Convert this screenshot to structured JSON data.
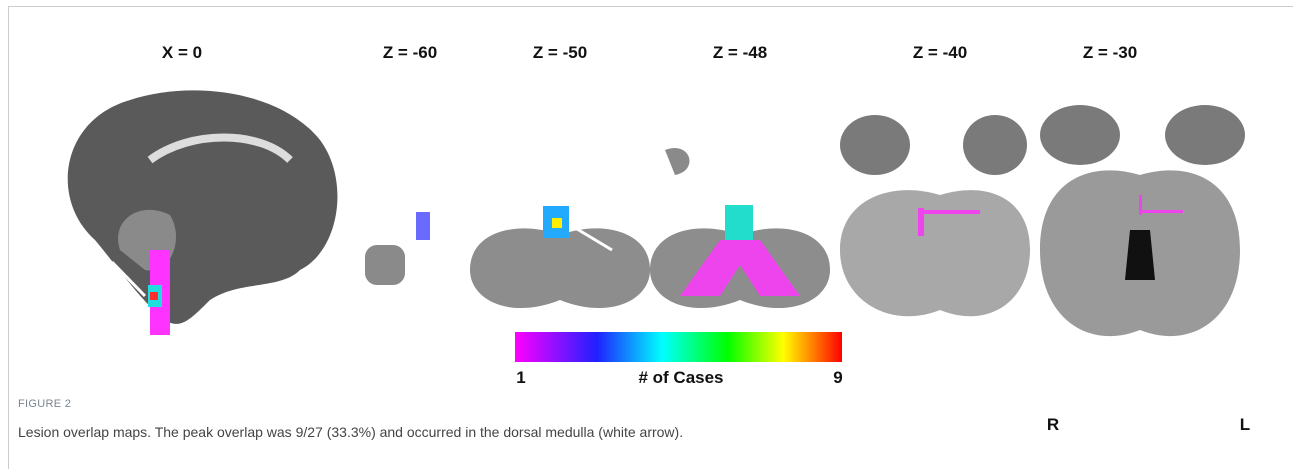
{
  "figure": {
    "panels": [
      "X = 0",
      "Z = -60",
      "Z = -50",
      "Z = -48",
      "Z = -40",
      "Z = -30"
    ],
    "orientation": {
      "right": "R",
      "left": "L"
    },
    "colorbar": {
      "min": 1,
      "label": "# of Cases",
      "max": 9
    },
    "figure_label": "FIGURE 2",
    "caption": "Lesion overlap maps. The peak overlap was 9/27 (33.3%) and occurred in the dorsal medulla (white arrow)."
  }
}
